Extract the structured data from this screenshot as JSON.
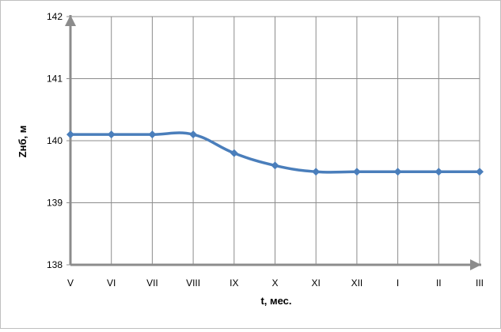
{
  "chart_data": {
    "type": "line",
    "title": "",
    "xlabel": "t, мес.",
    "ylabel": "Zнб, м",
    "categories": [
      "V",
      "VI",
      "VII",
      "VIII",
      "IX",
      "X",
      "XI",
      "XII",
      "I",
      "II",
      "III"
    ],
    "series": [
      {
        "values": [
          140.1,
          140.1,
          140.1,
          140.1,
          139.8,
          139.6,
          139.5,
          139.5,
          139.5,
          139.5,
          139.5
        ]
      }
    ],
    "ylim": [
      138,
      142
    ],
    "yticks": [
      "138",
      "139",
      "140",
      "141",
      "142"
    ],
    "grid": true,
    "legend": "none",
    "colors": {
      "series": "#4a7ebb",
      "grid": "#8c8c8c",
      "axis": "#8c8c8c"
    }
  }
}
